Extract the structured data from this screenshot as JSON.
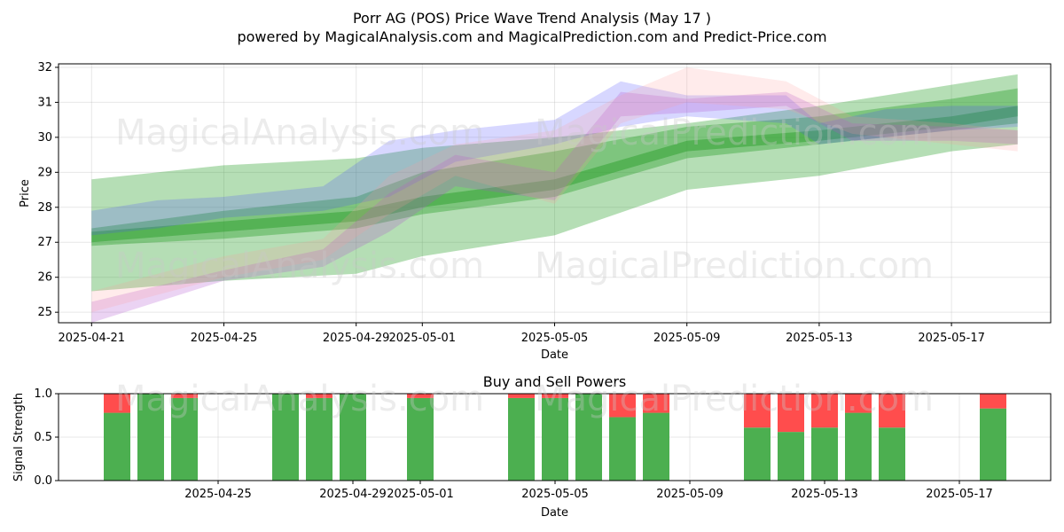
{
  "title": "Porr AG (POS) Price Wave Trend Analysis (May 17 )",
  "subtitle": "powered by MagicalAnalysis.com and MagicalPrediction.com and Predict-Price.com",
  "watermarks": [
    "MagicalAnalysis.com",
    "MagicalPrediction.com"
  ],
  "colors": {
    "green": "#2ca02c",
    "blue": "#4a4aff",
    "red": "#ff9a9a",
    "purple": "#b050d0",
    "buy": "#4caf50",
    "sell": "#ff4d4d"
  },
  "chart_data": [
    {
      "type": "area",
      "xlabel": "Date",
      "ylabel": "Price",
      "ylim": [
        24.7,
        32.1
      ],
      "yticks": [
        25,
        26,
        27,
        28,
        29,
        30,
        31,
        32
      ],
      "xlim": [
        "2025-04-20",
        "2025-05-20"
      ],
      "xticks": [
        "2025-04-21",
        "2025-04-25",
        "2025-04-29",
        "2025-05-01",
        "2025-05-05",
        "2025-05-09",
        "2025-05-13",
        "2025-05-17"
      ],
      "grid": true,
      "bands": [
        {
          "color": "green",
          "opacity": 0.35,
          "x": [
            "2025-04-21",
            "2025-04-25",
            "2025-04-29",
            "2025-05-01",
            "2025-05-05",
            "2025-05-09",
            "2025-05-13",
            "2025-05-17",
            "2025-05-19"
          ],
          "upper": [
            28.8,
            29.2,
            29.4,
            29.7,
            30.0,
            30.4,
            30.9,
            31.5,
            31.8
          ],
          "lower": [
            25.6,
            25.9,
            26.1,
            26.6,
            27.2,
            28.5,
            28.9,
            29.6,
            29.8
          ]
        },
        {
          "color": "green",
          "opacity": 0.4,
          "x": [
            "2025-04-21",
            "2025-04-25",
            "2025-04-29",
            "2025-05-01",
            "2025-05-05",
            "2025-05-09",
            "2025-05-13",
            "2025-05-17",
            "2025-05-19"
          ],
          "upper": [
            27.4,
            27.9,
            28.3,
            29.0,
            29.6,
            30.3,
            30.6,
            31.1,
            31.4
          ],
          "lower": [
            26.9,
            27.1,
            27.4,
            27.8,
            28.3,
            29.4,
            29.8,
            30.2,
            30.4
          ]
        },
        {
          "color": "green",
          "opacity": 0.5,
          "x": [
            "2025-04-21",
            "2025-04-25",
            "2025-04-29",
            "2025-05-01",
            "2025-05-05",
            "2025-05-09",
            "2025-05-13",
            "2025-05-17",
            "2025-05-19"
          ],
          "upper": [
            27.3,
            27.6,
            27.9,
            28.3,
            28.8,
            29.9,
            30.2,
            30.6,
            30.9
          ],
          "lower": [
            27.0,
            27.3,
            27.6,
            28.0,
            28.5,
            29.6,
            29.9,
            30.3,
            30.6
          ]
        },
        {
          "color": "blue",
          "opacity": 0.22,
          "x": [
            "2025-04-21",
            "2025-04-23",
            "2025-04-25",
            "2025-04-28",
            "2025-04-30",
            "2025-05-02",
            "2025-05-05",
            "2025-05-07",
            "2025-05-09",
            "2025-05-12",
            "2025-05-13",
            "2025-05-15",
            "2025-05-17",
            "2025-05-19"
          ],
          "upper": [
            27.9,
            28.2,
            28.3,
            28.6,
            29.9,
            30.2,
            30.5,
            31.6,
            31.2,
            31.2,
            30.4,
            30.8,
            30.9,
            30.9
          ],
          "lower": [
            27.2,
            27.4,
            27.7,
            27.9,
            28.3,
            29.3,
            29.8,
            30.3,
            30.6,
            30.4,
            29.8,
            30.0,
            30.2,
            30.3
          ]
        },
        {
          "color": "purple",
          "opacity": 0.25,
          "x": [
            "2025-04-21",
            "2025-04-25",
            "2025-04-28",
            "2025-04-30",
            "2025-05-02",
            "2025-05-05",
            "2025-05-07",
            "2025-05-09",
            "2025-05-12",
            "2025-05-14",
            "2025-05-17",
            "2025-05-19"
          ],
          "upper": [
            25.3,
            26.2,
            26.8,
            28.4,
            29.5,
            29.0,
            31.3,
            31.1,
            31.3,
            30.4,
            30.3,
            30.2
          ],
          "lower": [
            24.7,
            25.9,
            26.3,
            27.3,
            28.6,
            28.2,
            30.6,
            30.7,
            30.9,
            29.9,
            29.9,
            29.8
          ]
        },
        {
          "color": "red",
          "opacity": 0.2,
          "x": [
            "2025-04-21",
            "2025-04-25",
            "2025-04-28",
            "2025-04-30",
            "2025-05-02",
            "2025-05-05",
            "2025-05-07",
            "2025-05-09",
            "2025-05-12",
            "2025-05-14",
            "2025-05-17",
            "2025-05-19"
          ],
          "upper": [
            25.6,
            26.6,
            27.1,
            28.9,
            29.8,
            30.2,
            31.2,
            32.0,
            31.6,
            30.6,
            30.4,
            30.2
          ],
          "lower": [
            25.0,
            26.0,
            26.5,
            27.8,
            28.9,
            28.1,
            30.4,
            31.0,
            30.8,
            30.1,
            29.8,
            29.6
          ]
        }
      ]
    },
    {
      "type": "bar",
      "title": "Buy and Sell Powers",
      "xlabel": "Date",
      "ylabel": "Signal Strength",
      "ylim": [
        0,
        1
      ],
      "yticks": [
        "0.0",
        "0.5",
        "1.0"
      ],
      "xticks": [
        "2025-04-25",
        "2025-04-29",
        "2025-05-01",
        "2025-05-05",
        "2025-05-09",
        "2025-05-13",
        "2025-05-17"
      ],
      "grid": true,
      "categories": [
        "2025-04-22",
        "2025-04-23",
        "2025-04-24",
        "2025-04-27",
        "2025-04-28",
        "2025-04-29",
        "2025-05-01",
        "2025-05-04",
        "2025-05-05",
        "2025-05-06",
        "2025-05-07",
        "2025-05-08",
        "2025-05-11",
        "2025-05-12",
        "2025-05-13",
        "2025-05-14",
        "2025-05-15",
        "2025-05-18"
      ],
      "series": [
        {
          "name": "Buy",
          "values": [
            0.78,
            1.0,
            0.95,
            1.0,
            0.95,
            1.0,
            0.95,
            0.95,
            0.95,
            1.0,
            0.73,
            0.78,
            0.61,
            0.56,
            0.61,
            0.78,
            0.61,
            0.83
          ]
        },
        {
          "name": "Sell",
          "values": [
            0.22,
            0.0,
            0.05,
            0.0,
            0.05,
            0.0,
            0.05,
            0.05,
            0.05,
            0.0,
            0.27,
            0.22,
            0.39,
            0.44,
            0.39,
            0.22,
            0.39,
            0.17
          ]
        }
      ]
    }
  ]
}
